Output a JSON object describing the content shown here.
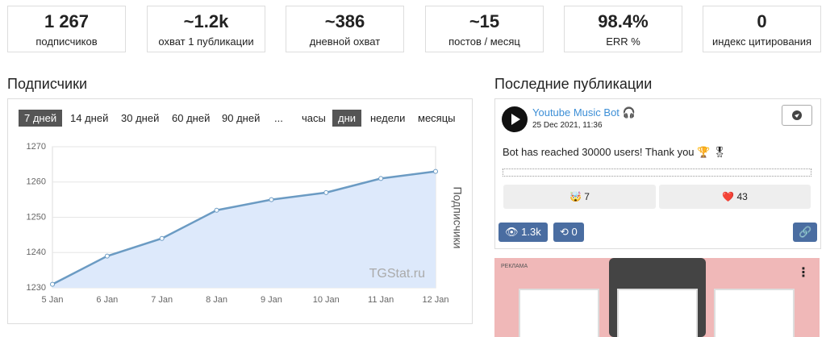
{
  "stats": [
    {
      "value": "1 267",
      "label": "подписчиков"
    },
    {
      "value": "~1.2k",
      "label": "охват 1 публикации"
    },
    {
      "value": "~386",
      "label": "дневной охват"
    },
    {
      "value": "~15",
      "label": "постов / месяц"
    },
    {
      "value": "98.4%",
      "label": "ERR %"
    },
    {
      "value": "0",
      "label": "индекс цитирования"
    }
  ],
  "subscribers_heading": "Подписчики",
  "ranges": [
    "7 дней",
    "14 дней",
    "30 дней",
    "60 дней",
    "90 дней",
    "...",
    "часы",
    "дни",
    "недели",
    "месяцы"
  ],
  "chart_data": {
    "type": "line",
    "y_label": "Подписчики",
    "watermark": "TGStat.ru",
    "categories": [
      "5 Jan",
      "6 Jan",
      "7 Jan",
      "8 Jan",
      "9 Jan",
      "10 Jan",
      "11 Jan",
      "12 Jan"
    ],
    "values": [
      1231,
      1239,
      1244,
      1252,
      1255,
      1257,
      1261,
      1263
    ],
    "color": "#6b9bc3",
    "fill": "#dde9fb",
    "ylim": [
      1230,
      1270
    ],
    "yticks": [
      1230,
      1240,
      1250,
      1260,
      1270
    ],
    "grid": true
  },
  "posts_heading": "Последние публикации",
  "post": {
    "channel": "Youtube Music Bot 🎧",
    "date": "25 Dec 2021, 11:36",
    "text": "Bot has reached 30000 users! Thank you 🏆 🎖",
    "reactions": [
      {
        "emoji": "🤯",
        "count": "7"
      },
      {
        "emoji": "❤️",
        "count": "43"
      }
    ],
    "views": "1.3k",
    "reposts": "0"
  },
  "ad": {
    "label": "РЕКЛАМА"
  }
}
